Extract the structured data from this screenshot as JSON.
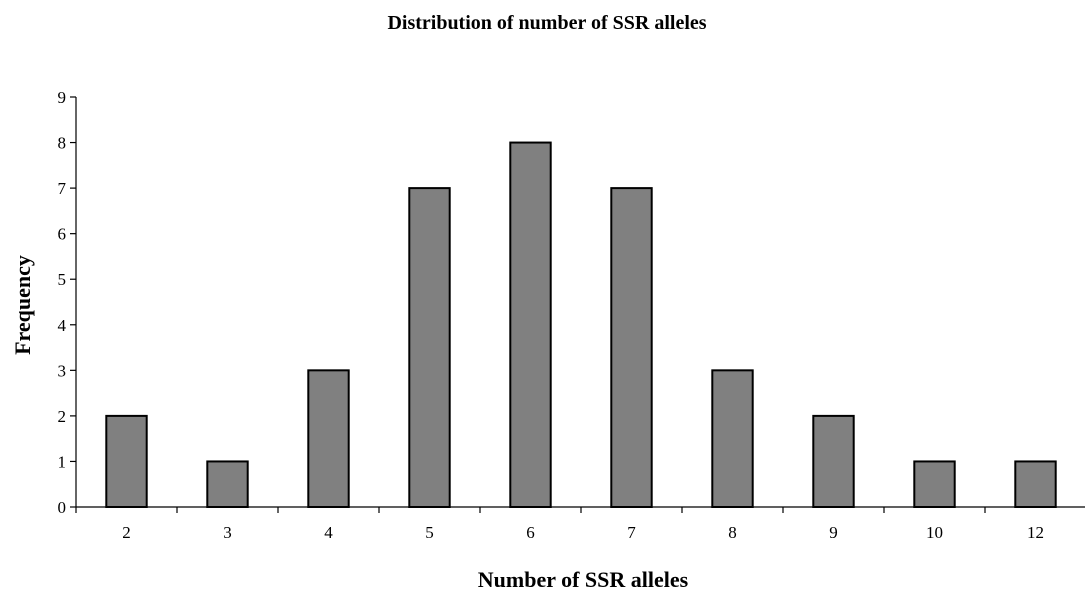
{
  "chart_data": {
    "type": "bar",
    "title": "Distribution of number of SSR alleles",
    "xlabel": "Number of SSR alleles",
    "ylabel": "Frequency",
    "categories": [
      "2",
      "3",
      "4",
      "5",
      "6",
      "7",
      "8",
      "9",
      "10",
      "12"
    ],
    "values": [
      2,
      1,
      3,
      7,
      8,
      7,
      3,
      2,
      1,
      1
    ],
    "ylim": [
      0,
      9
    ],
    "yticks": [
      "0",
      "1",
      "2",
      "3",
      "4",
      "5",
      "6",
      "7",
      "8",
      "9"
    ],
    "grid": false,
    "legend": "none",
    "bar_color": "#808080",
    "bar_edge_color": "#000000"
  }
}
